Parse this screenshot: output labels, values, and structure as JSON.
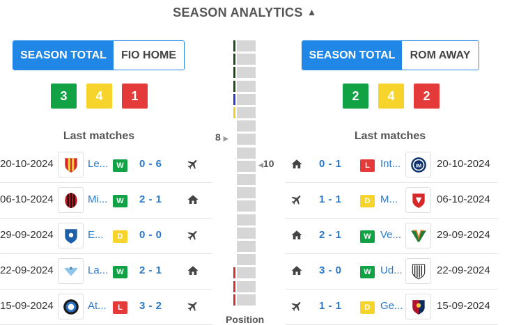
{
  "header": {
    "title": "SEASON ANALYTICS"
  },
  "home": {
    "toggle": {
      "active": "SEASON TOTAL",
      "other": "FIO HOME"
    },
    "counts": {
      "w": "3",
      "d": "4",
      "l": "1"
    },
    "last_matches_title": "Last matches",
    "matches": [
      {
        "date": "20-10-2024",
        "team": "Le...",
        "logo_icon": "lecce-crest-icon",
        "result": "W",
        "score": "0 - 6",
        "venue_icon": "plane-icon"
      },
      {
        "date": "06-10-2024",
        "team": "Mi...",
        "logo_icon": "milan-crest-icon",
        "result": "W",
        "score": "2 - 1",
        "venue_icon": "home-icon"
      },
      {
        "date": "29-09-2024",
        "team": "E...",
        "logo_icon": "empoli-crest-icon",
        "result": "D",
        "score": "0 - 0",
        "venue_icon": "plane-icon"
      },
      {
        "date": "22-09-2024",
        "team": "La...",
        "logo_icon": "lazio-crest-icon",
        "result": "W",
        "score": "2 - 1",
        "venue_icon": "home-icon"
      },
      {
        "date": "15-09-2024",
        "team": "At...",
        "logo_icon": "atalanta-crest-icon",
        "result": "L",
        "score": "3 - 2",
        "venue_icon": "plane-icon"
      }
    ]
  },
  "away": {
    "toggle": {
      "active": "SEASON TOTAL",
      "other": "ROM AWAY"
    },
    "counts": {
      "w": "2",
      "d": "4",
      "l": "2"
    },
    "last_matches_title": "Last matches",
    "matches": [
      {
        "date": "20-10-2024",
        "team": "Int...",
        "logo_icon": "inter-crest-icon",
        "result": "L",
        "score": "0 - 1",
        "venue_icon": "home-icon"
      },
      {
        "date": "06-10-2024",
        "team": "M...",
        "logo_icon": "monza-crest-icon",
        "result": "D",
        "score": "1 - 1",
        "venue_icon": "plane-icon"
      },
      {
        "date": "29-09-2024",
        "team": "Ve...",
        "logo_icon": "venezia-crest-icon",
        "result": "W",
        "score": "2 - 1",
        "venue_icon": "home-icon"
      },
      {
        "date": "22-09-2024",
        "team": "Ud...",
        "logo_icon": "udinese-crest-icon",
        "result": "W",
        "score": "3 - 0",
        "venue_icon": "home-icon"
      },
      {
        "date": "15-09-2024",
        "team": "Ge...",
        "logo_icon": "genoa-crest-icon",
        "result": "D",
        "score": "1 - 1",
        "venue_icon": "plane-icon"
      }
    ]
  },
  "position": {
    "footer": "Position",
    "home_position": "8",
    "away_position": "10",
    "total_positions": 20,
    "zones": [
      "#1a4d1a",
      "#1a4d1a",
      "#1a4d1a",
      "#1a4d1a",
      "#2a3bd6",
      "#f0d020",
      "",
      "",
      "",
      "",
      "",
      "",
      "",
      "",
      "",
      "",
      "",
      "#d43030",
      "#d43030",
      "#d43030"
    ]
  },
  "colors": {
    "accent": "#2187e6",
    "win": "#12a246",
    "draw": "#f7d42b",
    "loss": "#e43a39",
    "link": "#2a78c9"
  }
}
